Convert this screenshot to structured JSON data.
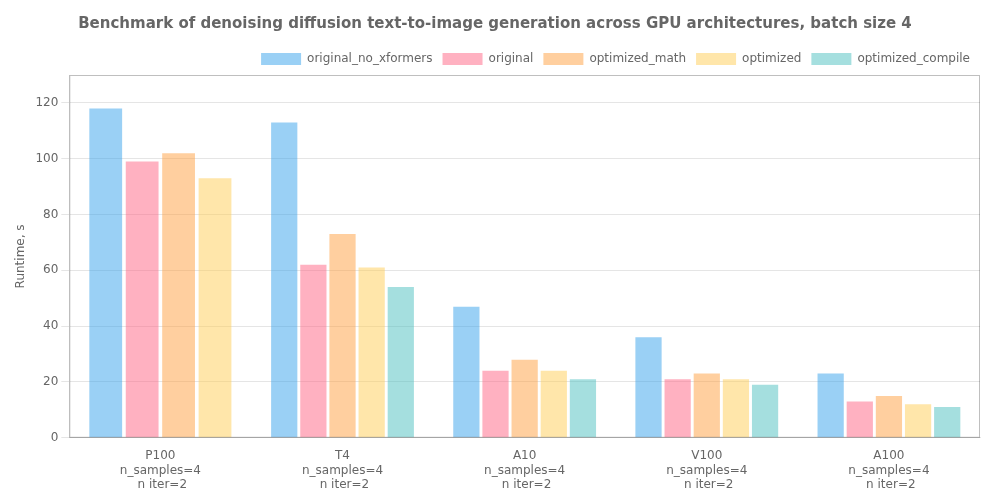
{
  "chart_data": {
    "type": "bar",
    "title": "Benchmark of denoising diffusion text-to-image generation across GPU architectures, batch size 4",
    "ylabel": "Runtime, s",
    "categories": [
      "P100\nn_samples=4\n n iter=2",
      "T4\nn_samples=4\n n iter=2",
      "A10\nn_samples=4\n n iter=2",
      "V100\nn_samples=4\n n iter=2",
      "A100\nn_samples=4\n n iter=2"
    ],
    "series": [
      {
        "name": "original_no_xformers",
        "values": [
          118,
          113,
          47,
          36,
          23
        ]
      },
      {
        "name": "original",
        "values": [
          99,
          62,
          24,
          21,
          13
        ]
      },
      {
        "name": "optimized_math",
        "values": [
          102,
          73,
          28,
          23,
          15
        ]
      },
      {
        "name": "optimized",
        "values": [
          93,
          61,
          24,
          21,
          12
        ]
      },
      {
        "name": "optimized_compile",
        "values": [
          null,
          54,
          21,
          19,
          11
        ]
      }
    ],
    "ylim": [
      0,
      130
    ],
    "yticks": [
      0,
      20,
      40,
      60,
      80,
      100,
      120
    ],
    "grid": "y",
    "legend": "upper right"
  }
}
